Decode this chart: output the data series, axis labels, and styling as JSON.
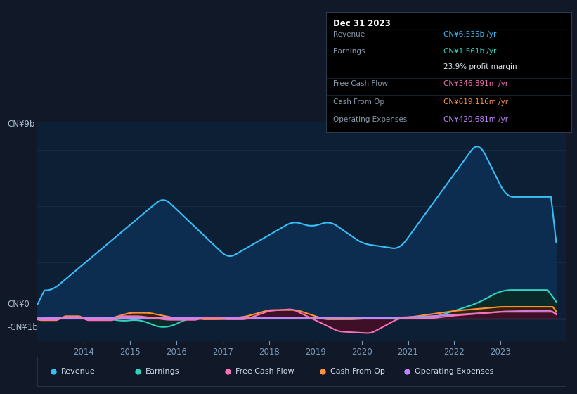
{
  "background_color": "#111827",
  "plot_bg_color": "#0d1f35",
  "header_bg": "#111827",
  "title_box": {
    "date": "Dec 31 2023",
    "rows": [
      {
        "label": "Revenue",
        "value": "CN¥6.535b /yr",
        "value_color": "#38bdf8"
      },
      {
        "label": "Earnings",
        "value": "CN¥1.561b /yr",
        "value_color": "#2dd4bf"
      },
      {
        "label": "",
        "value": "23.9% profit margin",
        "value_color": "#e2e8f0"
      },
      {
        "label": "Free Cash Flow",
        "value": "CN¥346.891m /yr",
        "value_color": "#f472b6"
      },
      {
        "label": "Cash From Op",
        "value": "CN¥619.116m /yr",
        "value_color": "#fb923c"
      },
      {
        "label": "Operating Expenses",
        "value": "CN¥420.681m /yr",
        "value_color": "#c084fc"
      }
    ]
  },
  "y_label_top": "CN¥9b",
  "y_label_zero": "CN¥0",
  "y_label_neg": "-CN¥1b",
  "x_ticks": [
    "2014",
    "2015",
    "2016",
    "2017",
    "2018",
    "2019",
    "2020",
    "2021",
    "2022",
    "2023"
  ],
  "legend": [
    {
      "label": "Revenue",
      "color": "#38bdf8"
    },
    {
      "label": "Earnings",
      "color": "#2dd4bf"
    },
    {
      "label": "Free Cash Flow",
      "color": "#f472b6"
    },
    {
      "label": "Cash From Op",
      "color": "#fb923c"
    },
    {
      "label": "Operating Expenses",
      "color": "#c084fc"
    }
  ],
  "revenue_color": "#38bdf8",
  "revenue_fill": "#0c2d4f",
  "earnings_color": "#2dd4bf",
  "earnings_fill": "#0a2a2a",
  "fcf_color": "#f472b6",
  "fcf_fill": "#3d1028",
  "cashfromop_color": "#fb923c",
  "cashfromop_fill": "#3d2000",
  "opex_color": "#c084fc",
  "opex_fill": "#200a35",
  "ylim_min": -1200000000.0,
  "ylim_max": 10500000000.0,
  "zero_line_color": "#ccddee",
  "grid_color": "#1e3a52"
}
